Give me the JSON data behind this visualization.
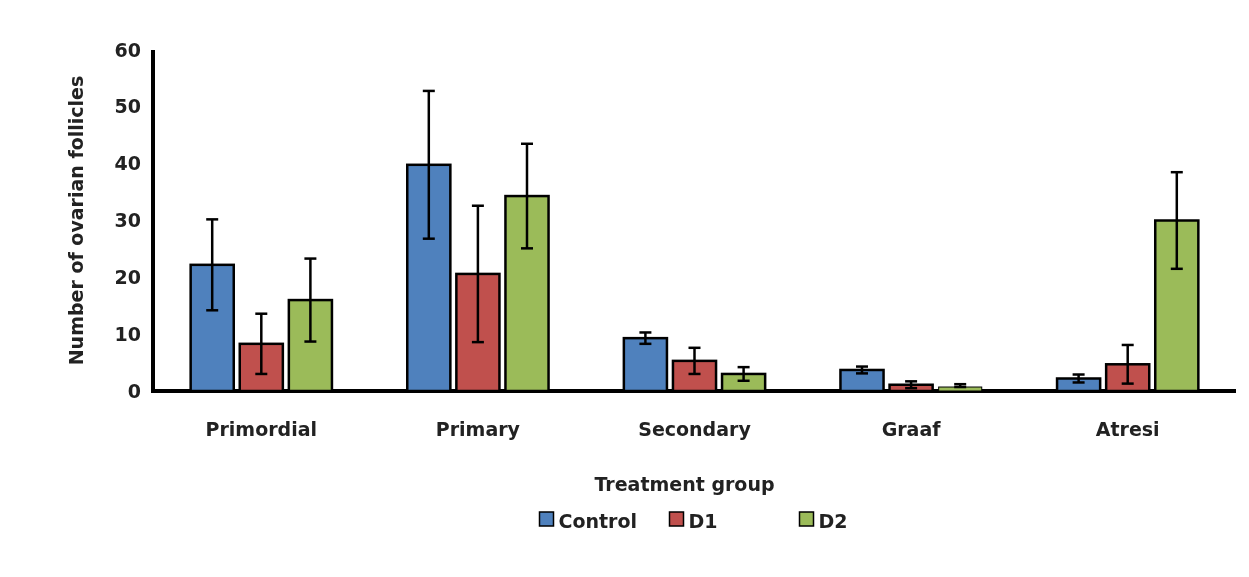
{
  "chart_data": {
    "type": "bar",
    "xlabel": "Treatment group",
    "ylabel": "Number of ovarian follicles",
    "categories": [
      "Primordial",
      "Primary",
      "Secondary",
      "Graaf",
      "Atresi"
    ],
    "series": [
      {
        "name": "Control",
        "color": "#4f81bd",
        "values": [
          22.2,
          39.8,
          9.3,
          3.7,
          2.2
        ],
        "errors": [
          8,
          13,
          1,
          0.6,
          0.7
        ]
      },
      {
        "name": "D1",
        "color": "#c0504d",
        "values": [
          8.3,
          20.6,
          5.3,
          1.1,
          4.7
        ],
        "errors": [
          5.3,
          12,
          2.3,
          0.6,
          3.4
        ]
      },
      {
        "name": "D2",
        "color": "#9bbb59",
        "values": [
          16,
          34.3,
          3,
          0.7,
          30
        ],
        "errors": [
          7.3,
          9.2,
          1.2,
          [
            0.7,
            1.2
          ],
          8.5
        ]
      }
    ],
    "ylim": [
      0,
      60
    ],
    "yticks": [
      0,
      10,
      20,
      30,
      40,
      50,
      60
    ],
    "grid": false,
    "legend": "bottom"
  }
}
